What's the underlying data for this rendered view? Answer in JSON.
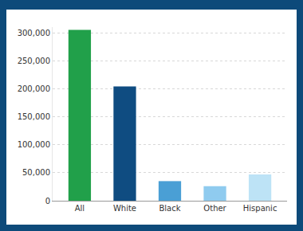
{
  "chart_data": {
    "type": "bar",
    "categories": [
      "All",
      "White",
      "Black",
      "Other",
      "Hispanic"
    ],
    "values": [
      305000,
      204000,
      35000,
      26000,
      47000
    ],
    "colors": [
      "#21a04a",
      "#0f4c81",
      "#4a9fd5",
      "#8fcbef",
      "#bde3f6"
    ],
    "ylim": [
      0,
      310000
    ],
    "yticks": [
      0,
      {
        "value": 50000,
        "label": "50,000"
      },
      {
        "value": 100000,
        "label": "100,000"
      },
      {
        "value": 150000,
        "label": "150,000"
      },
      {
        "value": 200000,
        "label": "200,000"
      },
      {
        "value": 250000,
        "label": "250,000"
      },
      {
        "value": 300000,
        "label": "300,000"
      }
    ],
    "grid": true
  }
}
